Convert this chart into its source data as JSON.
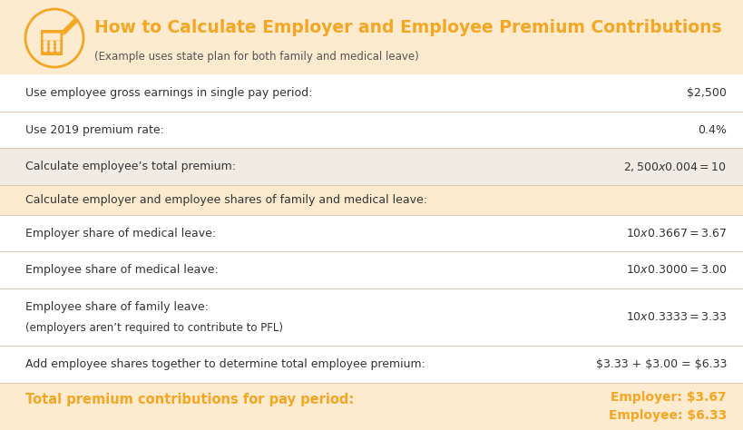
{
  "title": "How to Calculate Employer and Employee Premium Contributions",
  "subtitle": "(Example uses state plan for both family and medical leave)",
  "title_color": "#F5A623",
  "subtitle_color": "#555555",
  "bg_header": "#FDEBD0",
  "bg_body": "#FFFFFF",
  "bg_shaded_row": "#F4EDE4",
  "bg_section_header": "#FDEBD0",
  "border_color": "#D8C8B0",
  "text_color": "#333333",
  "orange_color": "#F5A623",
  "rows": [
    {
      "label": "Use employee gross earnings in single pay period:",
      "value": "$2,500",
      "bg": "white",
      "section_header": false,
      "tall": false
    },
    {
      "label": "Use 2019 premium rate:",
      "value": "0.4%",
      "bg": "white",
      "section_header": false,
      "tall": false
    },
    {
      "label": "Calculate employee’s total premium:",
      "value": "$2,500 x 0.004 = $10",
      "bg": "shaded",
      "section_header": false,
      "tall": false
    },
    {
      "label": "Calculate employer and employee shares of family and medical leave:",
      "value": "",
      "bg": "section",
      "section_header": true,
      "tall": false
    },
    {
      "label": "Employer share of medical leave:",
      "value": "$10 x 0.3667 = $3.67",
      "bg": "white",
      "section_header": false,
      "tall": false
    },
    {
      "label": "Employee share of medical leave:",
      "value": "$10 x 0.3000 = $3.00",
      "bg": "white",
      "section_header": false,
      "tall": false
    },
    {
      "label": "Employee share of family leave:\n(employers aren’t required to contribute to PFL)",
      "value": "$10 x 0.3333 = $3.33",
      "bg": "white",
      "section_header": false,
      "tall": true
    },
    {
      "label": "Add employee shares together to determine total employee premium:",
      "value": "$3.33 + $3.00 = $6.33",
      "bg": "white",
      "section_header": false,
      "tall": false
    }
  ],
  "footer_label": "Total premium contributions for pay period:",
  "footer_value1": "Employer: $3.67",
  "footer_value2": "Employee: $6.33",
  "fig_width": 8.19,
  "fig_height": 4.74,
  "dpi": 100
}
